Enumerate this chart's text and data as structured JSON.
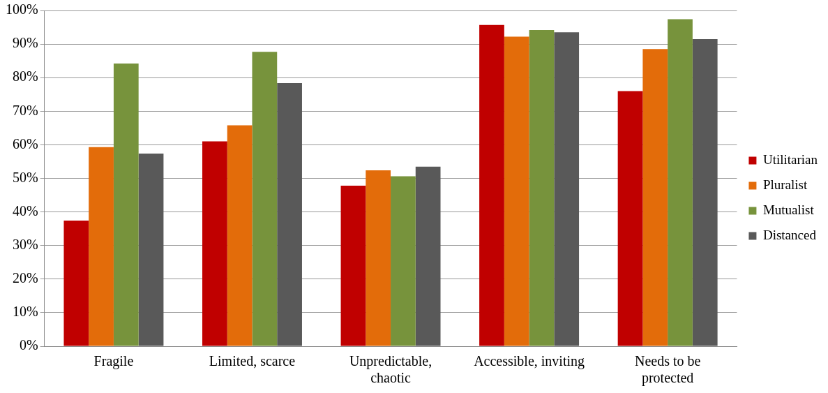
{
  "chart_data": {
    "type": "bar",
    "categories": [
      "Fragile",
      "Limited, scarce",
      "Unpredictable, chaotic",
      "Accessible, inviting",
      "Needs to be protected"
    ],
    "series": [
      {
        "name": "Utilitarian",
        "color": "#c00000",
        "values": [
          37.4,
          61,
          47.8,
          95.7,
          76
        ]
      },
      {
        "name": "Pluralist",
        "color": "#e36c0a",
        "values": [
          59.3,
          65.8,
          52.4,
          92.2,
          88.5
        ]
      },
      {
        "name": "Mutualist",
        "color": "#77933c",
        "values": [
          84.2,
          87.7,
          50.6,
          94.2,
          97.4
        ]
      },
      {
        "name": "Distanced",
        "color": "#595959",
        "values": [
          57.4,
          78.4,
          53.5,
          93.5,
          91.5
        ]
      }
    ],
    "ylim": [
      0,
      100
    ],
    "yticks": [
      {
        "value": 0,
        "label": "0%"
      },
      {
        "value": 10,
        "label": "10%"
      },
      {
        "value": 20,
        "label": "20%"
      },
      {
        "value": 30,
        "label": "30%"
      },
      {
        "value": 40,
        "label": "40%"
      },
      {
        "value": 50,
        "label": "50%"
      },
      {
        "value": 60,
        "label": "60%"
      },
      {
        "value": 70,
        "label": "70%"
      },
      {
        "value": 80,
        "label": "80%"
      },
      {
        "value": 90,
        "label": "90%"
      },
      {
        "value": 100,
        "label": "100%"
      }
    ],
    "grid": "y",
    "legend": "right"
  }
}
